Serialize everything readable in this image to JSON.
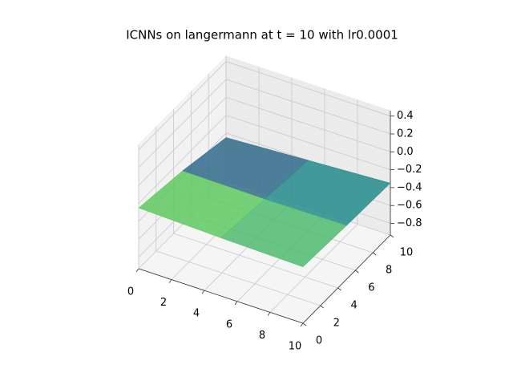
{
  "chart_data": {
    "type": "surface3d",
    "title": "ICNNs on langermann at t = 10 with lr0.0001",
    "colormap": "viridis",
    "x": [
      0,
      5,
      10
    ],
    "y": [
      0,
      5,
      10
    ],
    "z": [
      [
        -0.25,
        -0.28,
        -0.3
      ],
      [
        -0.33,
        -0.34,
        -0.33
      ],
      [
        -0.45,
        -0.4,
        -0.35
      ]
    ],
    "xlim": [
      0,
      10
    ],
    "ylim": [
      0,
      10
    ],
    "zlim": [
      -0.93,
      0.46
    ],
    "xticks": [
      0,
      2,
      4,
      6,
      8,
      10
    ],
    "yticks": [
      0,
      2,
      4,
      6,
      8,
      10
    ],
    "zticks": [
      {
        "value": -0.8,
        "label": "−0.8"
      },
      {
        "value": -0.6,
        "label": "−0.6"
      },
      {
        "value": -0.4,
        "label": "−0.4"
      },
      {
        "value": -0.2,
        "label": "−0.2"
      },
      {
        "value": 0,
        "label": "0.0"
      },
      0.2,
      0.4
    ],
    "grid": true
  }
}
